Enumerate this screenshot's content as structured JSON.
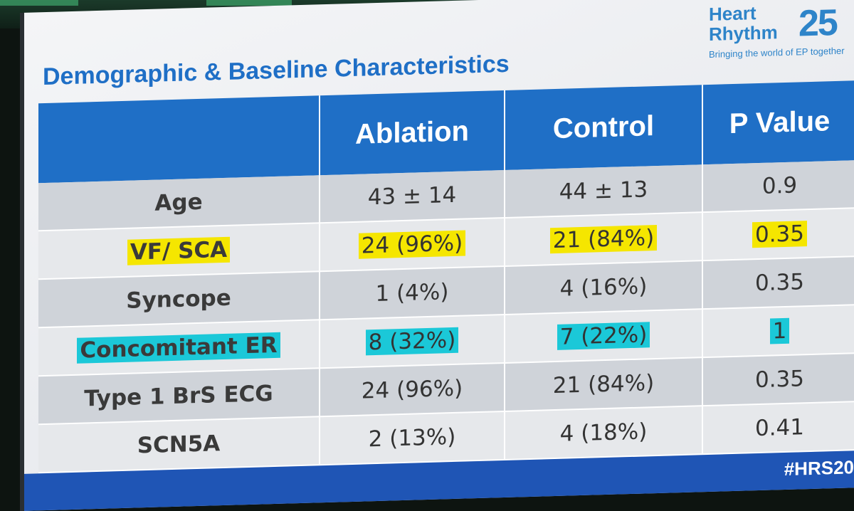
{
  "slide": {
    "title": "Demographic & Baseline Characteristics",
    "logo": {
      "line1": "Heart",
      "line2": "Rhythm",
      "year": "25",
      "tagline": "Bringing the world of EP together"
    },
    "hashtag": "#HRS20"
  },
  "table": {
    "headers": [
      "",
      "Ablation",
      "Control",
      "P Value"
    ],
    "rows": [
      {
        "label": "Age",
        "ablation": "43 ± 14",
        "control": "44 ± 13",
        "p": "0.9",
        "highlight": "none"
      },
      {
        "label": "VF/ SCA",
        "ablation": "24 (96%)",
        "control": "21 (84%)",
        "p": "0.35",
        "highlight": "yellow"
      },
      {
        "label": "Syncope",
        "ablation": "1 (4%)",
        "control": "4 (16%)",
        "p": "0.35",
        "highlight": "none"
      },
      {
        "label": "Concomitant ER",
        "ablation": "8 (32%)",
        "control": "7 (22%)",
        "p": "1",
        "highlight": "cyan"
      },
      {
        "label": "Type 1 BrS ECG",
        "ablation": "24 (96%)",
        "control": "21 (84%)",
        "p": "0.35",
        "highlight": "none"
      },
      {
        "label": "SCN5A",
        "ablation": "2 (13%)",
        "control": "4 (18%)",
        "p": "0.41",
        "highlight": "none"
      }
    ]
  },
  "colors": {
    "header_blue": "#1f6fc6",
    "highlight_yellow": "#f5e600",
    "highlight_cyan": "#1bc8d8",
    "footer_blue": "#1f55b5"
  }
}
